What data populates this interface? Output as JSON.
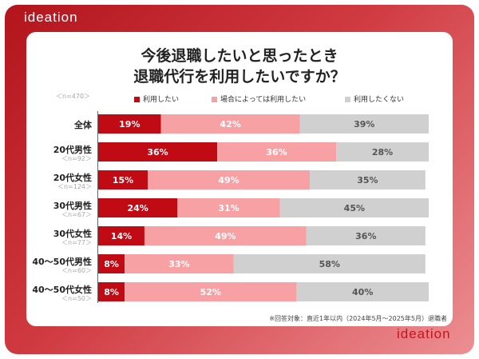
{
  "brand": {
    "logo_text": "ideation"
  },
  "chart_data": {
    "type": "bar",
    "orientation": "horizontal",
    "stacked": true,
    "title_line1": "今後退職したいと思ったとき",
    "title_line2": "退職代行を利用したいですか？",
    "total_n": "＜n=470＞",
    "categories": [
      "全体",
      "20代男性",
      "20代女性",
      "30代男性",
      "30代女性",
      "40〜50代男性",
      "40〜50代女性"
    ],
    "sample_sizes": [
      "",
      "＜n=92＞",
      "＜n=124＞",
      "＜n=67＞",
      "＜n=77＞",
      "＜n=60＞",
      "＜n=50＞"
    ],
    "series": [
      {
        "name": "利用したい",
        "color": "#c00a14",
        "label_color": "#ffffff",
        "values": [
          19,
          36,
          15,
          24,
          14,
          8,
          8
        ]
      },
      {
        "name": "場合によっては利用したい",
        "color": "#f7a1a4",
        "label_color": "#ffffff",
        "values": [
          42,
          36,
          49,
          31,
          49,
          33,
          52
        ]
      },
      {
        "name": "利用したくない",
        "color": "#d0d0d0",
        "label_color": "#555555",
        "values": [
          39,
          28,
          35,
          45,
          36,
          58,
          40
        ]
      }
    ],
    "value_suffix": "%",
    "xlim": [
      0,
      100
    ],
    "legend_position": "top"
  },
  "footnote": "※回答対象：直近1年以内（2024年5月〜2025年5月）退職者"
}
